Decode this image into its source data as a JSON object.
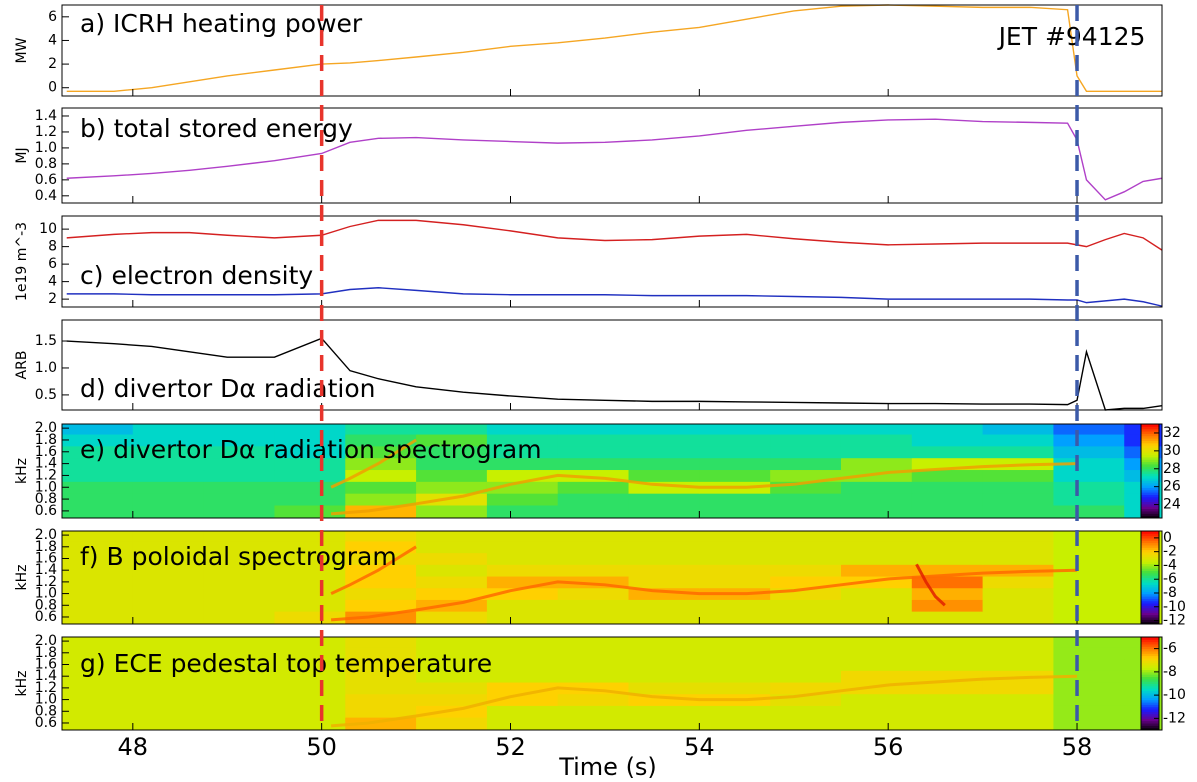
{
  "chart_data": [
    {
      "type": "line",
      "title": "a) ICRH heating power",
      "ylabel": "MW",
      "annotation": "JET #94125",
      "xlim": [
        47.25,
        58.9
      ],
      "ylim": [
        -0.7,
        7.0
      ],
      "yticks": [
        0,
        2,
        4,
        6
      ],
      "x": [
        47.3,
        47.8,
        48.2,
        48.6,
        49.0,
        49.5,
        50.0,
        50.3,
        50.6,
        51.0,
        51.5,
        52.0,
        52.5,
        53.0,
        53.5,
        54.0,
        54.5,
        55.0,
        55.5,
        56.0,
        56.5,
        57.0,
        57.5,
        57.9,
        58.0,
        58.1,
        58.3,
        58.5,
        58.7,
        58.9
      ],
      "series": [
        {
          "color": "#f5a623",
          "values": [
            -0.3,
            -0.3,
            0.0,
            0.5,
            1.0,
            1.5,
            2.0,
            2.1,
            2.3,
            2.6,
            3.0,
            3.5,
            3.8,
            4.2,
            4.7,
            5.1,
            5.8,
            6.5,
            6.9,
            7.0,
            6.9,
            6.8,
            6.8,
            6.6,
            1.0,
            -0.3,
            -0.3,
            -0.3,
            -0.3,
            -0.3
          ]
        }
      ]
    },
    {
      "type": "line",
      "title": "b) total stored energy",
      "ylabel": "MJ",
      "xlim": [
        47.25,
        58.9
      ],
      "ylim": [
        0.31,
        1.5
      ],
      "yticks": [
        0.4,
        0.6,
        0.8,
        {
          "value": 1,
          "label": "1.0"
        },
        1.2,
        1.4
      ],
      "x": [
        47.3,
        47.8,
        48.2,
        48.6,
        49.0,
        49.5,
        50.0,
        50.3,
        50.6,
        51.0,
        51.5,
        52.0,
        52.5,
        53.0,
        53.5,
        54.0,
        54.5,
        55.0,
        55.5,
        56.0,
        56.5,
        57.0,
        57.5,
        57.9,
        58.0,
        58.1,
        58.3,
        58.5,
        58.7,
        58.9
      ],
      "series": [
        {
          "color": "#b040c8",
          "values": [
            0.62,
            0.65,
            0.68,
            0.72,
            0.77,
            0.84,
            0.93,
            1.07,
            1.12,
            1.13,
            1.1,
            1.08,
            1.06,
            1.07,
            1.1,
            1.15,
            1.22,
            1.27,
            1.32,
            1.35,
            1.36,
            1.33,
            1.32,
            1.31,
            1.1,
            0.6,
            0.35,
            0.45,
            0.58,
            0.62
          ]
        }
      ]
    },
    {
      "type": "line",
      "title": "c) electron density",
      "ylabel": "1e19 m^-3",
      "xlim": [
        47.25,
        58.9
      ],
      "ylim": [
        1.1,
        11.5
      ],
      "yticks": [
        2,
        4,
        6,
        8,
        10
      ],
      "x": [
        47.3,
        47.8,
        48.2,
        48.6,
        49.0,
        49.5,
        50.0,
        50.3,
        50.6,
        51.0,
        51.5,
        52.0,
        52.5,
        53.0,
        53.5,
        54.0,
        54.5,
        55.0,
        55.5,
        56.0,
        56.5,
        57.0,
        57.5,
        57.9,
        58.0,
        58.1,
        58.3,
        58.5,
        58.7,
        58.9
      ],
      "series": [
        {
          "color": "#d42020",
          "values": [
            9.0,
            9.4,
            9.6,
            9.6,
            9.3,
            9.0,
            9.3,
            10.3,
            11.0,
            11.0,
            10.5,
            9.8,
            9.0,
            8.7,
            8.8,
            9.2,
            9.4,
            8.9,
            8.5,
            8.2,
            8.3,
            8.4,
            8.4,
            8.4,
            8.2,
            8.0,
            8.8,
            9.5,
            9.0,
            7.6
          ]
        },
        {
          "color": "#2030c0",
          "values": [
            2.6,
            2.6,
            2.5,
            2.5,
            2.5,
            2.5,
            2.6,
            3.1,
            3.3,
            3.0,
            2.6,
            2.5,
            2.5,
            2.5,
            2.4,
            2.4,
            2.4,
            2.3,
            2.2,
            2.0,
            2.0,
            2.0,
            2.0,
            1.9,
            1.9,
            1.6,
            1.8,
            2.0,
            1.7,
            1.2
          ]
        }
      ]
    },
    {
      "type": "line",
      "title": "d) divertor Dα radiation",
      "ylabel": "ARB",
      "xlim": [
        47.25,
        58.9
      ],
      "ylim": [
        0.22,
        1.89
      ],
      "yticks": [
        0.5,
        {
          "value": 1,
          "label": "1.0"
        },
        1.5
      ],
      "x": [
        47.3,
        47.8,
        48.2,
        48.6,
        49.0,
        49.5,
        50.0,
        50.3,
        50.6,
        51.0,
        51.5,
        52.0,
        52.5,
        53.0,
        53.5,
        54.0,
        54.5,
        55.0,
        55.5,
        56.0,
        56.5,
        57.0,
        57.5,
        57.9,
        58.0,
        58.1,
        58.3,
        58.5,
        58.7,
        58.9
      ],
      "series": [
        {
          "color": "#000000",
          "values": [
            1.5,
            1.45,
            1.4,
            1.3,
            1.2,
            1.2,
            1.55,
            0.95,
            0.8,
            0.65,
            0.55,
            0.48,
            0.42,
            0.4,
            0.38,
            0.38,
            0.37,
            0.36,
            0.35,
            0.34,
            0.34,
            0.33,
            0.33,
            0.32,
            0.4,
            1.3,
            0.22,
            0.25,
            0.25,
            0.3
          ]
        }
      ]
    },
    {
      "type": "heatmap",
      "title": "e) divertor Dα radiation spectrogram",
      "ylabel": "kHz",
      "xlim": [
        47.25,
        58.9
      ],
      "ylim": [
        0.48,
        2.07
      ],
      "yticks": [
        0.6,
        0.8,
        {
          "value": 1,
          "label": "1.0"
        },
        1.2,
        1.4,
        1.6,
        1.8,
        {
          "value": 2,
          "label": "2.0"
        }
      ],
      "zlim": [
        22.5,
        33
      ],
      "zticks": [
        24,
        26,
        28,
        30,
        32
      ],
      "x_edges": [
        47.25,
        48,
        48.75,
        49.5,
        50.25,
        51,
        51.75,
        52.5,
        53.25,
        54,
        54.75,
        55.5,
        56.25,
        57,
        57.75,
        58.5,
        58.9
      ],
      "y_edges": [
        0.48,
        0.7,
        0.9,
        1.1,
        1.3,
        1.5,
        1.7,
        1.9,
        2.07
      ],
      "z": [
        [
          28,
          28,
          28,
          28.5,
          31,
          29,
          28,
          28,
          28,
          28,
          28,
          28,
          28,
          28,
          28,
          27
        ],
        [
          28,
          28,
          28,
          28,
          29,
          30,
          28.5,
          28,
          28,
          28,
          28,
          28,
          28,
          28,
          27.5,
          27
        ],
        [
          28,
          28,
          28,
          28,
          28.5,
          29,
          29,
          28.5,
          29.5,
          29.5,
          28.5,
          28,
          28,
          28,
          27.5,
          27
        ],
        [
          27.5,
          27.5,
          27.5,
          27.5,
          29.5,
          28.5,
          29.5,
          29.5,
          28.5,
          28.5,
          29,
          29,
          28.5,
          28.5,
          27,
          26.5
        ],
        [
          27.5,
          27.5,
          27.5,
          27.5,
          29,
          28,
          28,
          28,
          28,
          28,
          28,
          29,
          29.5,
          29.5,
          27,
          26
        ],
        [
          27.5,
          27.5,
          27.5,
          27,
          28.5,
          28,
          27.5,
          27.5,
          27.5,
          27.5,
          27.5,
          27.5,
          27.5,
          27.5,
          26.5,
          25.5
        ],
        [
          27,
          27,
          27,
          27,
          28,
          28.5,
          27.5,
          27.5,
          27.5,
          27.5,
          27.5,
          27.5,
          27,
          27,
          26,
          25
        ],
        [
          26.5,
          27,
          27,
          27,
          27.5,
          27.5,
          27,
          27,
          27,
          27,
          27,
          27,
          27,
          26.5,
          25.5,
          25
        ]
      ],
      "series": [
        {
          "color": "#f0a000",
          "x": [
            50.1,
            50.5,
            51,
            51.5,
            52,
            52.5,
            53,
            53.5,
            54,
            54.5,
            55,
            55.5,
            56,
            56.5,
            57,
            57.5,
            58
          ],
          "values": [
            0.55,
            0.6,
            0.72,
            0.85,
            1.05,
            1.2,
            1.15,
            1.05,
            1.0,
            1.0,
            1.05,
            1.15,
            1.25,
            1.3,
            1.35,
            1.38,
            1.4
          ]
        },
        {
          "color": "#f0a000",
          "x": [
            50.1,
            50.3,
            50.6,
            51.0
          ],
          "values": [
            1.0,
            1.15,
            1.4,
            1.8
          ]
        }
      ]
    },
    {
      "type": "heatmap",
      "title": "f) B poloidal spectrogram",
      "ylabel": "kHz",
      "xlim": [
        47.25,
        58.9
      ],
      "ylim": [
        0.48,
        2.07
      ],
      "yticks": [
        0.6,
        0.8,
        {
          "value": 1,
          "label": "1.0"
        },
        1.2,
        1.4,
        1.6,
        1.8,
        {
          "value": 2,
          "label": "2.0"
        }
      ],
      "zlim": [
        -12.5,
        1
      ],
      "zticks": [
        0,
        -2,
        -4,
        -6,
        -8,
        -10,
        -12
      ],
      "x_edges": [
        47.25,
        48,
        48.75,
        49.5,
        50.25,
        51,
        51.75,
        52.5,
        53.25,
        54,
        54.75,
        55.5,
        56.25,
        57,
        57.75,
        58.5,
        58.9
      ],
      "y_edges": [
        0.48,
        0.7,
        0.9,
        1.1,
        1.3,
        1.5,
        1.7,
        1.9,
        2.07
      ],
      "z": [
        [
          -3,
          -3,
          -3,
          -2.5,
          -1,
          -2.5,
          -3,
          -3,
          -3,
          -3,
          -3,
          -3,
          -3,
          -3,
          -3.5,
          -3.5
        ],
        [
          -3,
          -3,
          -3,
          -3,
          -2,
          -1.5,
          -3,
          -3,
          -3,
          -3,
          -3,
          -3,
          -1,
          -3,
          -3.5,
          -3.5
        ],
        [
          -3,
          -3,
          -3,
          -3,
          -2.5,
          -2,
          -2,
          -2.5,
          -1.5,
          -1.5,
          -2.5,
          -3,
          -1.5,
          -3,
          -3.5,
          -3.5
        ],
        [
          -3,
          -3,
          -3,
          -3,
          -2,
          -2.5,
          -1.5,
          -1.5,
          -2.5,
          -2.5,
          -2,
          -2,
          -0.5,
          -2.5,
          -3.5,
          -3.5
        ],
        [
          -3,
          -3,
          -3,
          -3,
          -2,
          -3,
          -2.5,
          -2.5,
          -2.5,
          -2.5,
          -2.5,
          -1.5,
          -1.5,
          -1.5,
          -3.5,
          -3.5
        ],
        [
          -3,
          -3,
          -3,
          -3,
          -2.5,
          -2.5,
          -3,
          -3,
          -3,
          -3,
          -3,
          -3,
          -3,
          -3,
          -3.5,
          -3.5
        ],
        [
          -3,
          -3,
          -3,
          -3,
          -2,
          -3,
          -3,
          -3,
          -3,
          -3,
          -3,
          -3,
          -3,
          -3,
          -3.5,
          -3.5
        ],
        [
          -3,
          -3,
          -3,
          -3,
          -2.5,
          -3,
          -3,
          -3,
          -3,
          -3,
          -3,
          -3,
          -3,
          -3,
          -3.5,
          -3.5
        ]
      ],
      "series": [
        {
          "color": "#ff6a00",
          "x": [
            50.1,
            50.5,
            51,
            51.5,
            52,
            52.5,
            53,
            53.5,
            54,
            54.5,
            55,
            55.5,
            56,
            56.5,
            57,
            57.5,
            58
          ],
          "values": [
            0.55,
            0.6,
            0.72,
            0.85,
            1.05,
            1.2,
            1.15,
            1.05,
            1.0,
            1.0,
            1.05,
            1.15,
            1.25,
            1.3,
            1.35,
            1.38,
            1.4
          ]
        },
        {
          "color": "#ff6a00",
          "x": [
            50.1,
            50.3,
            50.6,
            51.0
          ],
          "values": [
            1.0,
            1.15,
            1.4,
            1.8
          ]
        },
        {
          "color": "#e02000",
          "x": [
            56.3,
            56.4,
            56.5,
            56.6
          ],
          "values": [
            1.5,
            1.2,
            0.95,
            0.8
          ]
        }
      ]
    },
    {
      "type": "heatmap",
      "title": "g) ECE pedestal top temperature",
      "ylabel": "kHz",
      "xlabel": "Time (s)",
      "xlim": [
        47.25,
        58.9
      ],
      "xticks": [
        48,
        50,
        52,
        54,
        56,
        58
      ],
      "ylim": [
        0.48,
        2.07
      ],
      "yticks": [
        0.6,
        0.8,
        {
          "value": 1,
          "label": "1.0"
        },
        1.2,
        1.4,
        1.6,
        1.8,
        {
          "value": 2,
          "label": "2.0"
        }
      ],
      "zlim": [
        -13,
        -5
      ],
      "zticks": [
        -6,
        -8,
        -10,
        -12
      ],
      "x_edges": [
        47.25,
        48,
        48.75,
        49.5,
        50.25,
        51,
        51.75,
        52.5,
        53.25,
        54,
        54.75,
        55.5,
        56.25,
        57,
        57.75,
        58.5,
        58.9
      ],
      "y_edges": [
        0.48,
        0.7,
        0.9,
        1.1,
        1.3,
        1.5,
        1.7,
        1.9,
        2.07
      ],
      "z": [
        [
          -7.5,
          -7.5,
          -7.5,
          -7.5,
          -6.5,
          -7,
          -7.5,
          -7.5,
          -7.5,
          -7.5,
          -7.5,
          -7.5,
          -7.5,
          -7.5,
          -8,
          -8
        ],
        [
          -7.5,
          -7.5,
          -7.5,
          -7.5,
          -7,
          -6.8,
          -7.5,
          -7.5,
          -7.5,
          -7.5,
          -7.5,
          -7.5,
          -7.5,
          -7.5,
          -8,
          -8
        ],
        [
          -7.5,
          -7.5,
          -7.5,
          -7.5,
          -7,
          -7,
          -6.8,
          -7,
          -6.8,
          -6.8,
          -7.2,
          -7.5,
          -7.5,
          -7.5,
          -8,
          -8
        ],
        [
          -7.5,
          -7.5,
          -7.5,
          -7.5,
          -7.2,
          -7.2,
          -6.8,
          -6.8,
          -7.2,
          -7.2,
          -7,
          -7,
          -7,
          -7,
          -8,
          -8
        ],
        [
          -7.5,
          -7.5,
          -7.5,
          -7.5,
          -7.2,
          -7.5,
          -7.5,
          -7.5,
          -7.5,
          -7.5,
          -7.5,
          -7,
          -7,
          -7,
          -8,
          -8
        ],
        [
          -7.5,
          -7.5,
          -7.5,
          -7.5,
          -7.2,
          -7.5,
          -7.5,
          -7.5,
          -7.5,
          -7.5,
          -7.5,
          -7.5,
          -7.5,
          -7.5,
          -8,
          -8
        ],
        [
          -7.5,
          -7.5,
          -7.5,
          -7.5,
          -7.2,
          -7.5,
          -7.5,
          -7.5,
          -7.5,
          -7.5,
          -7.5,
          -7.5,
          -7.5,
          -7.5,
          -8,
          -8
        ],
        [
          -7.5,
          -7.5,
          -7.5,
          -7.5,
          -7.2,
          -7.5,
          -7.5,
          -7.5,
          -7.5,
          -7.5,
          -7.5,
          -7.5,
          -7.5,
          -7.5,
          -8,
          -8
        ]
      ],
      "series": [
        {
          "color": "#f0b000",
          "x": [
            50.1,
            50.5,
            51,
            51.5,
            52,
            52.5,
            53,
            53.5,
            54,
            54.5,
            55,
            55.5,
            56,
            56.5,
            57,
            57.5,
            58
          ],
          "values": [
            0.55,
            0.6,
            0.72,
            0.85,
            1.05,
            1.2,
            1.15,
            1.05,
            1.0,
            1.0,
            1.05,
            1.15,
            1.25,
            1.3,
            1.35,
            1.38,
            1.4
          ]
        }
      ]
    }
  ],
  "colormap": [
    "#000000",
    "#6a008c",
    "#1a1aff",
    "#00a0ff",
    "#00e0c0",
    "#40e040",
    "#c8f000",
    "#ffd000",
    "#ff7000",
    "#ff0000"
  ],
  "markers": [
    {
      "x": 50,
      "color": "#e8342c"
    },
    {
      "x": 58,
      "color": "#3c5aa8"
    }
  ]
}
